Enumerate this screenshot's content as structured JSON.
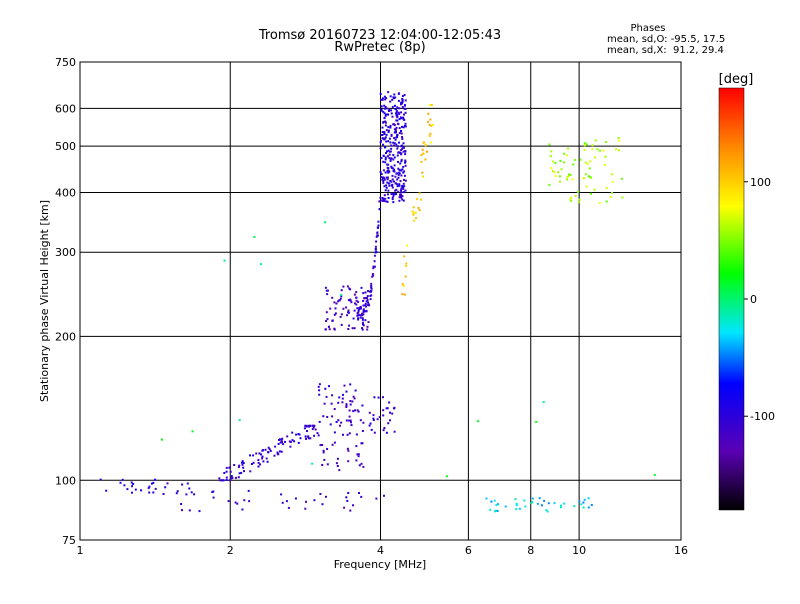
{
  "chart_data": {
    "type": "scatter",
    "title": "Tromsø 20160723 12:04:00-12:05:43",
    "subtitle": "RwPretec (8p)",
    "xlabel": "Frequency [MHz]",
    "ylabel": "Stationary phase Virtual Height [km]",
    "x_scale": "log",
    "y_scale": "log",
    "xlim": [
      1,
      16
    ],
    "ylim": [
      75,
      750
    ],
    "x_ticks": [
      1,
      2,
      4,
      6,
      8,
      10,
      16
    ],
    "x_tick_labels": [
      "1",
      "2",
      "4",
      "6",
      "8",
      "10",
      "16"
    ],
    "y_ticks": [
      75,
      100,
      200,
      300,
      400,
      500,
      600,
      750
    ],
    "y_tick_labels": [
      "75",
      "100",
      "200",
      "300",
      "400",
      "500",
      "600",
      "750"
    ],
    "grid": true,
    "legend_position": "top-right",
    "stats": {
      "heading": "Phases",
      "line_o": "mean, sd,O: -95.5, 17.5",
      "line_x": "mean, sd,X:  91.2, 29.4"
    },
    "colorbar": {
      "label": "[deg]",
      "range": [
        -180,
        180
      ],
      "tick_values": [
        100,
        0,
        -100
      ],
      "tick_labels": [
        "100",
        "0",
        "-100"
      ]
    },
    "clusters": [
      {
        "id": "low-e-trace",
        "x_range": [
          1.1,
          1.7
        ],
        "y_range": [
          93,
          101
        ],
        "count": 26,
        "phase": -100
      },
      {
        "id": "o-trace-rise",
        "x_range": [
          1.9,
          3.0
        ],
        "y_range": [
          100,
          130
        ],
        "count": 110,
        "phase": -105
      },
      {
        "id": "low-band-90",
        "x_range": [
          1.4,
          4.2
        ],
        "y_range": [
          86,
          96
        ],
        "count": 40,
        "phase": -105
      },
      {
        "id": "mid-echo-cluster",
        "x_range": [
          3.0,
          3.7
        ],
        "y_range": [
          105,
          160
        ],
        "count": 85,
        "phase": -110
      },
      {
        "id": "near-4mhz-cluster",
        "x_range": [
          3.8,
          4.3
        ],
        "y_range": [
          125,
          150
        ],
        "count": 28,
        "phase": -105
      },
      {
        "id": "f-layer-bottom",
        "x_range": [
          3.1,
          3.8
        ],
        "y_range": [
          205,
          255
        ],
        "count": 90,
        "phase": -115
      },
      {
        "id": "f-layer-rise",
        "x_range": [
          3.6,
          4.0
        ],
        "y_range": [
          215,
          390
        ],
        "count": 70,
        "phase": -105
      },
      {
        "id": "f-layer-top",
        "x_range": [
          4.0,
          4.5
        ],
        "y_range": [
          380,
          650
        ],
        "count": 320,
        "phase": -100
      },
      {
        "id": "x-trace",
        "x_range": [
          4.4,
          5.1
        ],
        "y_range": [
          240,
          610
        ],
        "count": 45,
        "phase": 100
      },
      {
        "id": "far-high-cluster",
        "x_range": [
          8.6,
          12.3
        ],
        "y_range": [
          380,
          520
        ],
        "count": 75,
        "phase": 60
      },
      {
        "id": "far-low-band",
        "x_range": [
          6.5,
          10.8
        ],
        "y_range": [
          86,
          92
        ],
        "count": 40,
        "phase": -30
      },
      {
        "id": "sparse-points",
        "x_range": [
          1.1,
          14.5
        ],
        "y_range": [
          100,
          400
        ],
        "count": 14,
        "phase": 0
      }
    ]
  }
}
